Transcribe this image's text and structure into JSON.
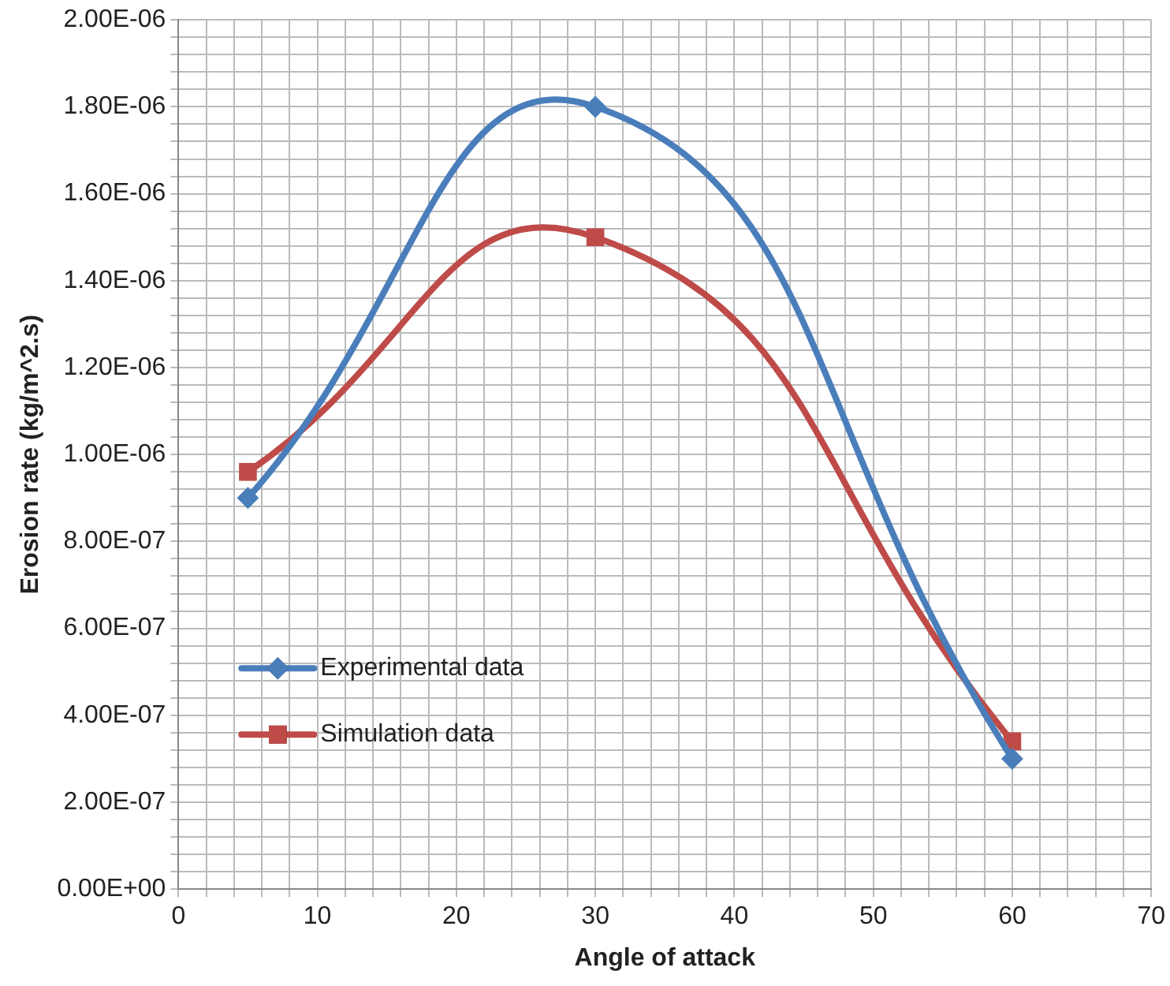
{
  "chart_data": {
    "type": "line",
    "xlabel": "Angle of attack",
    "ylabel": "Erosion rate (kg/m^2.s)",
    "series": [
      {
        "name": "Experimental data",
        "color": "#4a7ebb",
        "marker": "diamond",
        "x": [
          5,
          30,
          60
        ],
        "values": [
          9e-07,
          1.8e-06,
          3e-07
        ]
      },
      {
        "name": "Simulation data",
        "color": "#be4b48",
        "marker": "square",
        "x": [
          5,
          30,
          60
        ],
        "values": [
          9.6e-07,
          1.5e-06,
          3.4e-07
        ]
      }
    ],
    "xlim": [
      0,
      70
    ],
    "xticks": [
      0,
      {
        "value": 2,
        "label": null
      },
      {
        "value": 4,
        "label": null
      },
      {
        "value": 6,
        "label": null
      },
      {
        "value": 8,
        "label": null
      },
      10,
      {
        "value": 12,
        "label": null
      },
      {
        "value": 14,
        "label": null
      },
      {
        "value": 16,
        "label": null
      },
      {
        "value": 18,
        "label": null
      },
      20,
      {
        "value": 22,
        "label": null
      },
      {
        "value": 24,
        "label": null
      },
      {
        "value": 26,
        "label": null
      },
      {
        "value": 28,
        "label": null
      },
      30,
      {
        "value": 32,
        "label": null
      },
      {
        "value": 34,
        "label": null
      },
      {
        "value": 36,
        "label": null
      },
      {
        "value": 38,
        "label": null
      },
      40,
      {
        "value": 42,
        "label": null
      },
      {
        "value": 44,
        "label": null
      },
      {
        "value": 46,
        "label": null
      },
      {
        "value": 48,
        "label": null
      },
      50,
      {
        "value": 52,
        "label": null
      },
      {
        "value": 54,
        "label": null
      },
      {
        "value": 56,
        "label": null
      },
      {
        "value": 58,
        "label": null
      },
      60,
      {
        "value": 62,
        "label": null
      },
      {
        "value": 64,
        "label": null
      },
      {
        "value": 66,
        "label": null
      },
      {
        "value": 68,
        "label": null
      },
      70
    ],
    "ylim": [
      0,
      2e-06
    ],
    "yticks": [
      {
        "value": 0,
        "label": "0.00E+00"
      },
      {
        "value": 4e-08,
        "label": null
      },
      {
        "value": 8e-08,
        "label": null
      },
      {
        "value": 1.2e-07,
        "label": null
      },
      {
        "value": 1.6e-07,
        "label": null
      },
      {
        "value": 2e-07,
        "label": "2.00E-07"
      },
      {
        "value": 2.4e-07,
        "label": null
      },
      {
        "value": 2.8e-07,
        "label": null
      },
      {
        "value": 3.2e-07,
        "label": null
      },
      {
        "value": 3.6e-07,
        "label": null
      },
      {
        "value": 4e-07,
        "label": "4.00E-07"
      },
      {
        "value": 4.4e-07,
        "label": null
      },
      {
        "value": 4.8e-07,
        "label": null
      },
      {
        "value": 5.2e-07,
        "label": null
      },
      {
        "value": 5.6e-07,
        "label": null
      },
      {
        "value": 6e-07,
        "label": "6.00E-07"
      },
      {
        "value": 6.4e-07,
        "label": null
      },
      {
        "value": 6.8e-07,
        "label": null
      },
      {
        "value": 7.2e-07,
        "label": null
      },
      {
        "value": 7.6e-07,
        "label": null
      },
      {
        "value": 8e-07,
        "label": "8.00E-07"
      },
      {
        "value": 8.4e-07,
        "label": null
      },
      {
        "value": 8.8e-07,
        "label": null
      },
      {
        "value": 9.2e-07,
        "label": null
      },
      {
        "value": 9.6e-07,
        "label": null
      },
      {
        "value": 1e-06,
        "label": "1.00E-06"
      },
      {
        "value": 1.04e-06,
        "label": null
      },
      {
        "value": 1.08e-06,
        "label": null
      },
      {
        "value": 1.12e-06,
        "label": null
      },
      {
        "value": 1.16e-06,
        "label": null
      },
      {
        "value": 1.2e-06,
        "label": "1.20E-06"
      },
      {
        "value": 1.24e-06,
        "label": null
      },
      {
        "value": 1.28e-06,
        "label": null
      },
      {
        "value": 1.32e-06,
        "label": null
      },
      {
        "value": 1.36e-06,
        "label": null
      },
      {
        "value": 1.4e-06,
        "label": "1.40E-06"
      },
      {
        "value": 1.44e-06,
        "label": null
      },
      {
        "value": 1.48e-06,
        "label": null
      },
      {
        "value": 1.52e-06,
        "label": null
      },
      {
        "value": 1.56e-06,
        "label": null
      },
      {
        "value": 1.6e-06,
        "label": "1.60E-06"
      },
      {
        "value": 1.64e-06,
        "label": null
      },
      {
        "value": 1.68e-06,
        "label": null
      },
      {
        "value": 1.72e-06,
        "label": null
      },
      {
        "value": 1.76e-06,
        "label": null
      },
      {
        "value": 1.8e-06,
        "label": "1.80E-06"
      },
      {
        "value": 1.84e-06,
        "label": null
      },
      {
        "value": 1.88e-06,
        "label": null
      },
      {
        "value": 1.92e-06,
        "label": null
      },
      {
        "value": 1.96e-06,
        "label": null
      },
      {
        "value": 2e-06,
        "label": "2.00E-06"
      }
    ],
    "grid": true,
    "legend": "bottom left",
    "line_style": "solid"
  }
}
